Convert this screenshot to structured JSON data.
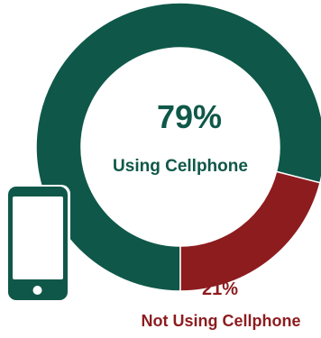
{
  "chart_data": {
    "type": "pie",
    "variant": "donut",
    "slices": [
      {
        "label": "Using Cellphone",
        "value": 79,
        "value_label": "79%",
        "color": "#0f5849"
      },
      {
        "label": "Not Using Cellphone",
        "value": 21,
        "value_label": "21%",
        "color": "#8d1c1f"
      }
    ]
  },
  "icon": {
    "name": "smartphone-icon",
    "color": "#0f5849"
  }
}
